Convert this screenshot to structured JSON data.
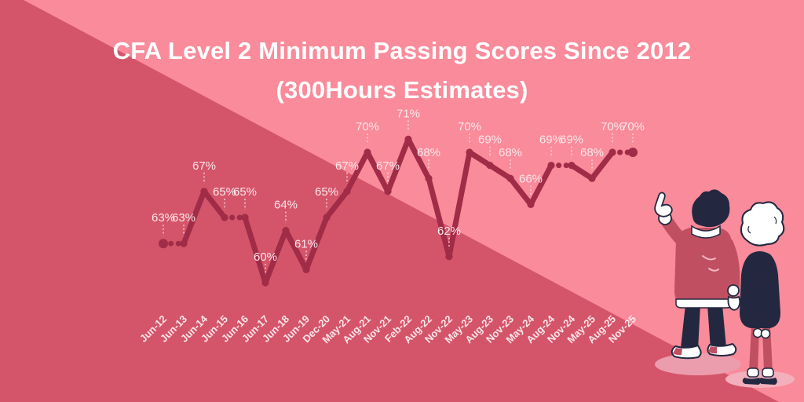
{
  "title": {
    "line1": "CFA Level 2 Minimum Passing Scores Since 2012",
    "line2": "(300Hours Estimates)"
  },
  "colors": {
    "background_light": "#F98B9A",
    "background_dark": "#D4556A",
    "line": "#A02C47",
    "data_label": "#FCE7EB",
    "axis_label": "#FFEDF0",
    "title_text": "#FFFFFF",
    "illustration_dark": "#232840",
    "illustration_red": "#C04F62",
    "floor_shadow": "#EFA3B2"
  },
  "chart_data": {
    "type": "line",
    "title": "CFA Level 2 Minimum Passing Scores Since 2012 (300Hours Estimates)",
    "categories": [
      "Jun-12",
      "Jun-13",
      "Jun-14",
      "Jun-15",
      "Jun-16",
      "Jun-17",
      "Jun-18",
      "Jun-19",
      "Dec-20",
      "May-21",
      "Aug-21",
      "Nov-21",
      "Feb-22",
      "Aug-22",
      "Nov-22",
      "May-23",
      "Aug-23",
      "Nov-23",
      "May-24",
      "Aug-24",
      "Nov-24",
      "May-25",
      "Aug-25",
      "Nov-25"
    ],
    "values": [
      63,
      63,
      67,
      65,
      65,
      60,
      64,
      61,
      65,
      67,
      70,
      67,
      71,
      68,
      62,
      70,
      69,
      68,
      66,
      69,
      69,
      68,
      70,
      70
    ],
    "unit": "%",
    "ylim": [
      58,
      73
    ],
    "grid": false,
    "legend": false,
    "point_labels": true,
    "xlabel": "",
    "ylabel": ""
  }
}
